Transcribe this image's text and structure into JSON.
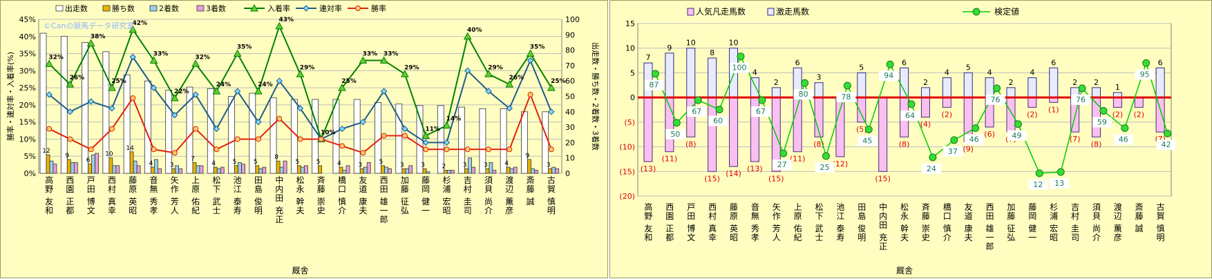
{
  "chart_data": [
    {
      "type": "bar",
      "watermark": "©Canの競馬データ研究室",
      "xlabel": "厩舎",
      "ylabel_left": "勝率・連対率・入着率(%)",
      "ylabel_right": "出走数・勝ち数・2着数・3着数",
      "left_axis": {
        "min": 0,
        "max": 45,
        "step": 5,
        "tick_labels": [
          "0%",
          "5%",
          "10%",
          "15%",
          "20%",
          "25%",
          "30%",
          "35%",
          "40%",
          "45%"
        ]
      },
      "right_axis": {
        "min": 0,
        "max": 100,
        "step": 10,
        "tick_labels": [
          "0",
          "10",
          "20",
          "30",
          "40",
          "50",
          "60",
          "70",
          "80",
          "90",
          "100"
        ]
      },
      "grid": true,
      "legend_position": "top",
      "categories": [
        "高野 友和",
        "西園 正都",
        "戸田 博文",
        "西村 真幸",
        "藤原 英昭",
        "音無 秀孝",
        "矢作 芳人",
        "上原 佑紀",
        "松下 武士",
        "池江 泰寿",
        "田島 俊明",
        "中内田 充正",
        "松永 幹夫",
        "斉藤 崇史",
        "橋口 慎介",
        "友道 康夫",
        "西田 雄一郎",
        "加藤 征弘",
        "藤岡 健一",
        "杉浦 宏昭",
        "吉村 圭司",
        "須貝 尚介",
        "渡辺 薫彦",
        "斎藤 誠",
        "古賀 慎明"
      ],
      "bar_series": [
        {
          "name": "出走数",
          "color": "#ffffff",
          "values": [
            91,
            89,
            85,
            79,
            64,
            60,
            54,
            56,
            55,
            50,
            52,
            49,
            48,
            48,
            48,
            48,
            46,
            45,
            44,
            44,
            43,
            42,
            42,
            40,
            40
          ]
        },
        {
          "name": "勝ち数",
          "color": "#e8b400",
          "values": [
            12,
            9,
            6,
            10,
            14,
            4,
            3,
            7,
            4,
            5,
            5,
            8,
            5,
            5,
            4,
            3,
            5,
            3,
            3,
            2,
            3,
            3,
            4,
            9,
            3
          ]
        },
        {
          "name": "2着数",
          "color": "#9ccde6",
          "values": [
            8,
            7,
            12,
            5,
            8,
            9,
            5,
            5,
            3,
            7,
            3,
            4,
            4,
            0,
            2,
            4,
            4,
            3,
            1,
            2,
            10,
            7,
            3,
            3,
            4
          ]
        },
        {
          "name": "3着数",
          "color": "#e6a0d8",
          "values": [
            6,
            7,
            13,
            5,
            5,
            3,
            3,
            5,
            4,
            6,
            4,
            8,
            5,
            0,
            5,
            7,
            3,
            5,
            0,
            2,
            4,
            2,
            4,
            2,
            3
          ]
        }
      ],
      "line_series": [
        {
          "name": "入着率",
          "color": "#008000",
          "marker": "triangle",
          "label_values": [
            "32%",
            "26%",
            "38%",
            "25%",
            "42%",
            "33%",
            "22%",
            "32%",
            "24%",
            "35%",
            "24%",
            "43%",
            "29%",
            "10%",
            "25%",
            "33%",
            "33%",
            "29%",
            "11%",
            "14%",
            "40%",
            "29%",
            "26%",
            "35%",
            "25%"
          ],
          "values": [
            32,
            26,
            38,
            25,
            42,
            33,
            22,
            32,
            24,
            35,
            24,
            43,
            29,
            10,
            25,
            33,
            33,
            29,
            11,
            14,
            40,
            29,
            26,
            35,
            25
          ]
        },
        {
          "name": "連対率",
          "color": "#1f5a8c",
          "marker": "diamond",
          "values": [
            23,
            18,
            21,
            19,
            34,
            25,
            17,
            23,
            13,
            24,
            15,
            27,
            19,
            10,
            13,
            15,
            24,
            13,
            9,
            9,
            30,
            24,
            19,
            33,
            18
          ]
        },
        {
          "name": "勝率",
          "color": "#e02010",
          "marker": "circle",
          "values": [
            13,
            10,
            7,
            13,
            22,
            7,
            6,
            13,
            7,
            10,
            10,
            16,
            10,
            10,
            8,
            6,
            11,
            11,
            7,
            7,
            7,
            7,
            7,
            23,
            7
          ]
        }
      ],
      "bar_labels": {
        "勝ち数": [
          "12",
          "9",
          "6",
          "10",
          "14",
          "4",
          "3",
          "7",
          "4",
          "5",
          "5",
          "8",
          "5",
          "5",
          "4",
          "3",
          "5",
          "3",
          "3",
          "2",
          "3",
          "3",
          "4",
          "9",
          "3"
        ]
      }
    },
    {
      "type": "bar",
      "xlabel": "厩舎",
      "y_axis": {
        "min": -20,
        "max": 15,
        "step": 5,
        "tick_labels": [
          "(20)",
          "(15)",
          "(10)",
          "(5)",
          "0",
          "5",
          "10",
          "15"
        ]
      },
      "right_axis_present": true,
      "grid": true,
      "legend_position": "top",
      "legend": [
        "人気凡走馬数",
        "激走馬数",
        "検定値"
      ],
      "categories": [
        "高野 友和",
        "西園 正都",
        "戸田 博文",
        "西村 真幸",
        "藤原 英昭",
        "音無 秀孝",
        "矢作 芳人",
        "上原 佑紀",
        "松下 武士",
        "池江 泰寿",
        "田島 俊明",
        "中内田 充正",
        "松永 幹夫",
        "斉藤 崇史",
        "橋口 慎介",
        "友道 康夫",
        "西田 雄一郎",
        "加藤 征弘",
        "藤岡 健一",
        "杉浦 宏昭",
        "吉村 圭司",
        "須貝 尚介",
        "渡辺 薫彦",
        "斎藤 誠",
        "古賀 慎明"
      ],
      "series": [
        {
          "name": "人気凡走馬数",
          "color": "#ffffff",
          "values": [
            -13,
            -11,
            -8,
            -15,
            -14,
            -13,
            -15,
            -11,
            -8,
            -12,
            -5,
            -15,
            -8,
            -4,
            -2,
            -9,
            -6,
            -7,
            -2,
            -1,
            -7,
            -8,
            -2,
            -2,
            -7
          ]
        },
        {
          "name": "激走馬数",
          "color": "#eaeaff",
          "values": [
            7,
            9,
            10,
            8,
            10,
            4,
            2,
            6,
            3,
            0,
            5,
            0,
            6,
            2,
            4,
            5,
            4,
            2,
            4,
            6,
            2,
            2,
            1,
            0,
            6
          ]
        },
        {
          "name": "検定値",
          "color": "#00cc00",
          "values": [
            87,
            50,
            67,
            60,
            100,
            67,
            27,
            80,
            25,
            78,
            45,
            94,
            64,
            24,
            37,
            46,
            76,
            49,
            12,
            13,
            76,
            59,
            46,
            95,
            42
          ]
        }
      ],
      "labels_positive": [
        "7",
        "9",
        "10",
        "8",
        "10",
        "4",
        "2",
        "6",
        "3",
        "",
        "5",
        "",
        "6",
        "2",
        "4",
        "5",
        "4",
        "2",
        "4",
        "6",
        "2",
        "2",
        "1",
        "",
        "6"
      ],
      "labels_negative": [
        "(13)",
        "(11)",
        "(8)",
        "(15)",
        "(14)",
        "(13)",
        "(15)",
        "(11)",
        "(8)",
        "(12)",
        "(5)",
        "(15)",
        "(8)",
        "(4)",
        "(2)",
        "(9)",
        "(6)",
        "(7)",
        "(2)",
        "(1)",
        "(7)",
        "(8)",
        "(2)",
        "(2)",
        "(7)"
      ],
      "test_labels": [
        "87",
        "50",
        "67",
        "60",
        "100",
        "67",
        "27",
        "80",
        "25",
        "78",
        "45",
        "94",
        "64",
        "24",
        "37",
        "46",
        "76",
        "49",
        "12",
        "13",
        "76",
        "59",
        "46",
        "95",
        "42"
      ]
    }
  ]
}
